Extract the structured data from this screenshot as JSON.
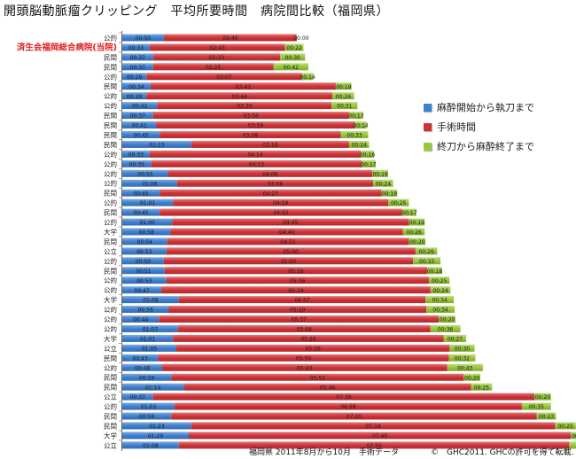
{
  "title": "開頭脳動脈瘤クリッピング　平均所要時間　病院間比較（福岡県）",
  "highlight_label": "済生会福岡総合病院(当院)",
  "footer_note": "福岡県 2011年8月から10月　手術データ",
  "copyright_note": "©　GHC2011. GHCの許可を得て転載.",
  "colors": {
    "seg1": "#3f7fd0",
    "seg2": "#cf3236",
    "seg3": "#99c83a",
    "highlight_text": "#e02020"
  },
  "legend": [
    {
      "label": "麻酔開始から執刀まで",
      "color": "#3f7fd0"
    },
    {
      "label": "手術時間",
      "color": "#cf3236"
    },
    {
      "label": "終刀から麻酔終了まで",
      "color": "#99c83a"
    }
  ],
  "chart_data": {
    "type": "bar",
    "orientation": "horizontal",
    "stacked": true,
    "unit": "minutes",
    "value_format": "h:mm",
    "categories": [
      "公的",
      "済生会福岡総合病院(当院)",
      "民間",
      "民間",
      "公的",
      "民間",
      "公的",
      "公的",
      "民間",
      "民間",
      "民間",
      "民間",
      "公的",
      "公的",
      "公的",
      "公的",
      "民間",
      "公的",
      "民間",
      "公的",
      "大学",
      "民間",
      "公立",
      "公的",
      "民間",
      "公的",
      "公的",
      "大学",
      "公的",
      "公的",
      "公的",
      "大学",
      "公立",
      "民間",
      "公的",
      "民間",
      "民間",
      "公立",
      "公的",
      "民間",
      "民間",
      "大学",
      "公立"
    ],
    "series": [
      {
        "name": "麻酔開始から執刀まで",
        "values": [
          50,
          33,
          37,
          37,
          29,
          34,
          29,
          42,
          37,
          41,
          45,
          83,
          33,
          35,
          55,
          66,
          45,
          61,
          45,
          60,
          58,
          54,
          53,
          50,
          51,
          53,
          47,
          68,
          56,
          44,
          67,
          61,
          65,
          43,
          48,
          59,
          74,
          37,
          63,
          59,
          83,
          80,
          68
        ],
        "labels": [
          "00:50",
          "00:33",
          "00:37",
          "00:37",
          "00:29",
          "00:34",
          "00:29",
          "00:42",
          "00:37",
          "00:41",
          "00:45",
          "01:23",
          "00:33",
          "00:35",
          "00:55",
          "01:06",
          "00:45",
          "01:01",
          "00:45",
          "01:00",
          "00:58",
          "00:54",
          "00:53",
          "00:50",
          "00:51",
          "00:53",
          "00:47",
          "01:08",
          "00:56",
          "00:44",
          "01:07",
          "01:01",
          "01:05",
          "00:43",
          "00:48",
          "00:59",
          "01:14",
          "00:37",
          "01:03",
          "00:59",
          "01:23",
          "01:20",
          "01:08"
        ]
      },
      {
        "name": "手術時間",
        "values": [
          160,
          163,
          153,
          145,
          187,
          223,
          224,
          210,
          236,
          239,
          218,
          190,
          254,
          253,
          246,
          236,
          267,
          259,
          292,
          285,
          280,
          291,
          300,
          300,
          316,
          316,
          324,
          297,
          310,
          337,
          304,
          326,
          329,
          350,
          343,
          352,
          346,
          459,
          418,
          440,
          438,
          460,
          470
        ],
        "labels": [
          "02:40",
          "02:43",
          "02:33",
          "02:25",
          "03:07",
          "03:43",
          "03:44",
          "03:30",
          "03:56",
          "03:59",
          "03:38",
          "03:10",
          "04:14",
          "04:13",
          "04:06",
          "03:56",
          "04:27",
          "04:19",
          "04:52",
          "04:45",
          "04:40",
          "04:51",
          "05:00",
          "05:00",
          "05:16",
          "05:16",
          "05:24",
          "04:57",
          "05:10",
          "05:37",
          "05:04",
          "05:26",
          "05:29",
          "05:50",
          "05:43",
          "05:52",
          "05:46",
          "07:39",
          "06:58",
          "07:20",
          "07:18",
          "07:40",
          "07:50"
        ]
      },
      {
        "name": "終刀から麻酔終了まで",
        "values": [
          0,
          22,
          30,
          42,
          14,
          19,
          26,
          31,
          17,
          14,
          33,
          24,
          16,
          17,
          19,
          24,
          19,
          25,
          17,
          19,
          26,
          20,
          26,
          33,
          18,
          25,
          24,
          34,
          34,
          20,
          36,
          27,
          30,
          32,
          43,
          20,
          25,
          20,
          35,
          23,
          25,
          20,
          35
        ],
        "labels": [
          "00:00",
          "00:22",
          "00:30",
          "00:42",
          "00:14",
          "00:19",
          "00:26",
          "00:31",
          "00:17",
          "00:14",
          "00:33",
          "00:24",
          "00:16",
          "00:17",
          "00:19",
          "00:24",
          "00:19",
          "00:25",
          "00:17",
          "00:19",
          "00:26",
          "00:20",
          "00:26",
          "00:33",
          "00:18",
          "00:25",
          "00:24",
          "00:34",
          "00:34",
          "00:20",
          "00:36",
          "00:27",
          "00:30",
          "00:32",
          "00:43",
          "00:20",
          "00:25",
          "00:20",
          "00:35",
          "00:23",
          "00:25",
          "00:20",
          "00:35"
        ]
      }
    ],
    "highlight_index": 1,
    "legend_position": "right",
    "grid": false
  }
}
